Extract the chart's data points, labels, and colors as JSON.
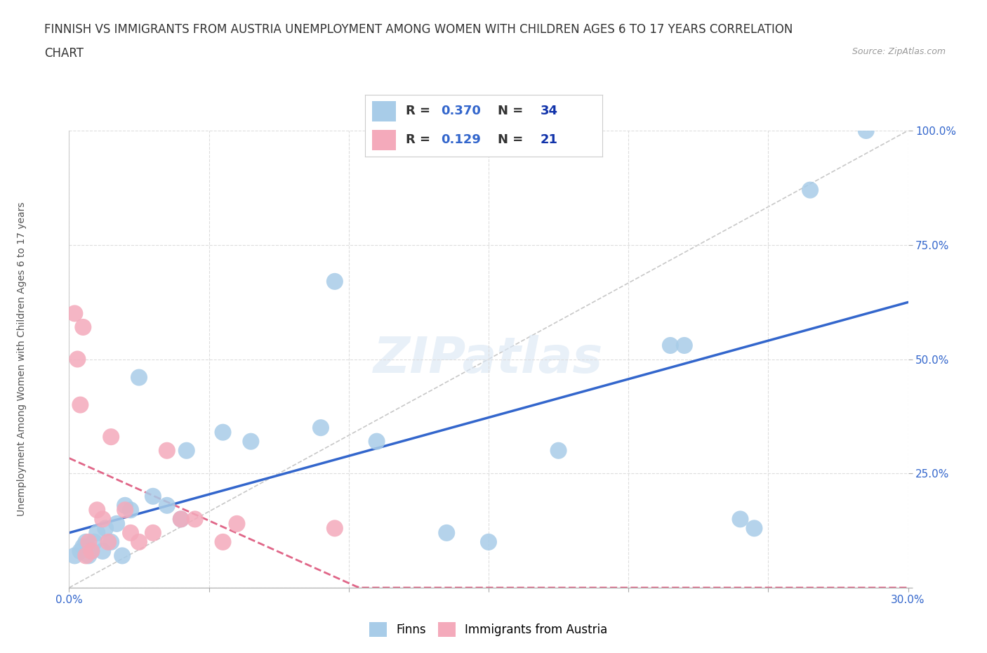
{
  "title_line1": "FINNISH VS IMMIGRANTS FROM AUSTRIA UNEMPLOYMENT AMONG WOMEN WITH CHILDREN AGES 6 TO 17 YEARS CORRELATION",
  "title_line2": "CHART",
  "source": "Source: ZipAtlas.com",
  "ylabel": "Unemployment Among Women with Children Ages 6 to 17 years",
  "xlim": [
    0.0,
    0.3
  ],
  "ylim": [
    0.0,
    1.0
  ],
  "xticks": [
    0.0,
    0.05,
    0.1,
    0.15,
    0.2,
    0.25,
    0.3
  ],
  "xticklabels": [
    "0.0%",
    "",
    "",
    "",
    "",
    "",
    "30.0%"
  ],
  "yticks": [
    0.0,
    0.25,
    0.5,
    0.75,
    1.0
  ],
  "yticklabels": [
    "",
    "25.0%",
    "50.0%",
    "75.0%",
    "100.0%"
  ],
  "finns_x": [
    0.002,
    0.004,
    0.005,
    0.006,
    0.007,
    0.008,
    0.009,
    0.01,
    0.012,
    0.013,
    0.015,
    0.017,
    0.019,
    0.02,
    0.022,
    0.025,
    0.03,
    0.035,
    0.04,
    0.042,
    0.055,
    0.065,
    0.09,
    0.095,
    0.11,
    0.135,
    0.15,
    0.175,
    0.215,
    0.22,
    0.24,
    0.245,
    0.265,
    0.285
  ],
  "finns_y": [
    0.07,
    0.08,
    0.09,
    0.1,
    0.07,
    0.08,
    0.1,
    0.12,
    0.08,
    0.13,
    0.1,
    0.14,
    0.07,
    0.18,
    0.17,
    0.46,
    0.2,
    0.18,
    0.15,
    0.3,
    0.34,
    0.32,
    0.35,
    0.67,
    0.32,
    0.12,
    0.1,
    0.3,
    0.53,
    0.53,
    0.15,
    0.13,
    0.87,
    1.0
  ],
  "immigrants_x": [
    0.002,
    0.003,
    0.004,
    0.005,
    0.006,
    0.007,
    0.008,
    0.01,
    0.012,
    0.014,
    0.015,
    0.02,
    0.022,
    0.025,
    0.03,
    0.035,
    0.04,
    0.045,
    0.055,
    0.06,
    0.095
  ],
  "immigrants_y": [
    0.6,
    0.5,
    0.4,
    0.57,
    0.07,
    0.1,
    0.08,
    0.17,
    0.15,
    0.1,
    0.33,
    0.17,
    0.12,
    0.1,
    0.12,
    0.3,
    0.15,
    0.15,
    0.1,
    0.14,
    0.13
  ],
  "finns_R": 0.37,
  "finns_N": 34,
  "immigrants_R": 0.129,
  "immigrants_N": 21,
  "finns_color": "#A8CCE8",
  "immigrants_color": "#F4AABB",
  "finns_trend_color": "#3366CC",
  "immigrants_trend_color": "#E06688",
  "diagonal_color": "#C8C8C8",
  "background_color": "#FFFFFF",
  "grid_color": "#DDDDDD",
  "grid_style": "--",
  "watermark": "ZIPatlas",
  "R_display_color": "#3366CC",
  "N_display_color": "#1133AA"
}
